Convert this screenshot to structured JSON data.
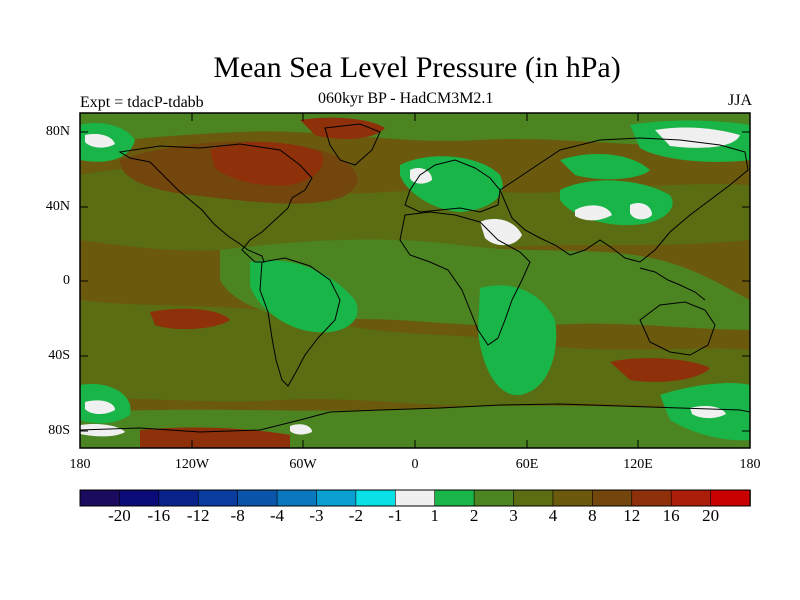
{
  "title": "Mean Sea Level Pressure (in hPa)",
  "subtitle": "060kyr BP - HadCM3M2.1",
  "experiment": "Expt = tdacP-tdabb",
  "season": "JJA",
  "colors": {
    "background": "#6b5a0e",
    "light_green": "#19b548",
    "mid_green": "#4b8420",
    "olive": "#5a6d12",
    "brown": "#73460e",
    "red_brown": "#8e300a",
    "white": "#f0f0f0",
    "coast": "#000000"
  },
  "map": {
    "lat_labels": [
      "80N",
      "40N",
      "0",
      "40S",
      "80S"
    ],
    "lon_labels": [
      "180",
      "120W",
      "60W",
      "0",
      "60E",
      "120E",
      "180"
    ]
  },
  "colorbar": {
    "colors": [
      "#1b0a5e",
      "#0a0a78",
      "#0a238c",
      "#0a3ca0",
      "#0a55aa",
      "#0a78be",
      "#0aa0d2",
      "#0ae1e6",
      "#f0f0f0",
      "#19b548",
      "#4b8420",
      "#5a6d12",
      "#6b5a0e",
      "#73460e",
      "#8e300a",
      "#aa1e0a",
      "#c80000"
    ],
    "labels": [
      "-20",
      "-16",
      "-12",
      "-8",
      "-4",
      "-3",
      "-2",
      "-1",
      "1",
      "2",
      "3",
      "4",
      "8",
      "12",
      "16",
      "20"
    ]
  }
}
